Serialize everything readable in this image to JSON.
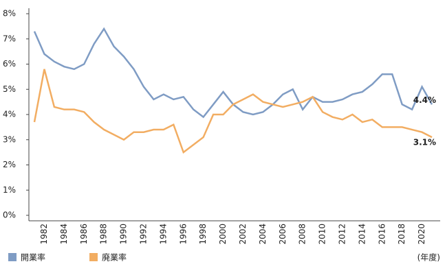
{
  "chart_data": {
    "type": "line",
    "categories": [
      null,
      "1982",
      null,
      "1984",
      null,
      "1986",
      null,
      "1988",
      null,
      "1990",
      null,
      "1992",
      null,
      "1994",
      null,
      "1996",
      null,
      "1998",
      null,
      "2000",
      null,
      "2002",
      null,
      "2004",
      null,
      "2006",
      null,
      "2008",
      null,
      "2010",
      null,
      "2012",
      null,
      "2014",
      null,
      "2016",
      null,
      "2018",
      null,
      "2020",
      null
    ],
    "series": [
      {
        "name": "開業率",
        "color": "#7f9cc4",
        "values": [
          7.3,
          6.4,
          6.1,
          5.9,
          5.8,
          6.0,
          6.8,
          7.4,
          6.7,
          6.3,
          5.8,
          5.1,
          4.6,
          4.8,
          4.6,
          4.7,
          4.2,
          3.9,
          4.4,
          4.9,
          4.4,
          4.1,
          4.0,
          4.1,
          4.4,
          4.8,
          5.0,
          4.2,
          4.7,
          4.5,
          4.5,
          4.6,
          4.8,
          4.9,
          5.2,
          5.6,
          5.6,
          4.4,
          4.2,
          5.1,
          4.4
        ],
        "value_labels": [
          null,
          null,
          null,
          null,
          null,
          null,
          null,
          null,
          null,
          null,
          null,
          null,
          null,
          null,
          null,
          null,
          null,
          null,
          null,
          null,
          null,
          null,
          null,
          null,
          null,
          null,
          null,
          null,
          null,
          null,
          null,
          null,
          null,
          null,
          null,
          null,
          null,
          null,
          null,
          null,
          "4.4%"
        ]
      },
      {
        "name": "廃業率",
        "color": "#f2ad62",
        "values": [
          3.7,
          5.8,
          4.3,
          4.2,
          4.2,
          4.1,
          3.7,
          3.4,
          3.2,
          3.0,
          3.3,
          3.3,
          3.4,
          3.4,
          3.6,
          2.5,
          2.8,
          3.1,
          4.0,
          4.0,
          4.4,
          4.6,
          4.8,
          4.5,
          4.4,
          4.3,
          4.4,
          4.5,
          4.7,
          4.1,
          3.9,
          3.8,
          4.0,
          3.7,
          3.8,
          3.5,
          3.5,
          3.5,
          3.4,
          3.3,
          3.1
        ],
        "value_labels": [
          null,
          null,
          null,
          null,
          null,
          null,
          null,
          null,
          null,
          null,
          null,
          null,
          null,
          null,
          null,
          null,
          null,
          null,
          null,
          null,
          null,
          null,
          null,
          null,
          null,
          null,
          null,
          null,
          null,
          null,
          null,
          null,
          null,
          null,
          null,
          null,
          null,
          null,
          null,
          null,
          "3.1%"
        ]
      }
    ],
    "ylim": [
      0,
      8
    ],
    "yticks": [
      {
        "value": 0,
        "label": "0%"
      },
      {
        "value": 1,
        "label": "1%"
      },
      {
        "value": 2,
        "label": "2%"
      },
      {
        "value": 3,
        "label": "3%"
      },
      {
        "value": 4,
        "label": "4%"
      },
      {
        "value": 5,
        "label": "5%"
      },
      {
        "value": 6,
        "label": "6%"
      },
      {
        "value": 7,
        "label": "7%"
      },
      {
        "value": 8,
        "label": "8%"
      }
    ],
    "x_label": "(年度)",
    "grid": false
  }
}
